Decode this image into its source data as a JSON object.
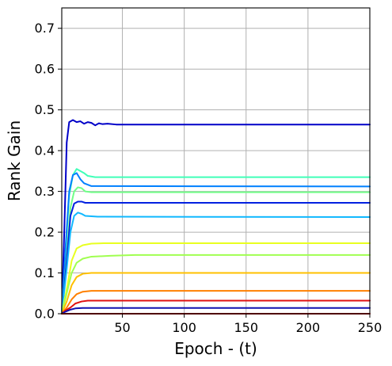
{
  "chart_data": {
    "type": "line",
    "title": "",
    "xlabel": "Epoch - (t)",
    "ylabel": "Rank Gain",
    "xlim": [
      1,
      250
    ],
    "ylim": [
      0,
      0.75
    ],
    "xticks": [
      50,
      100,
      150,
      200,
      250
    ],
    "yticks": [
      0.0,
      0.1,
      0.2,
      0.3,
      0.4,
      0.5,
      0.6,
      0.7
    ],
    "xtick_labels": [
      "50",
      "100",
      "150",
      "200",
      "250"
    ],
    "ytick_labels": [
      "0.0",
      "0.1",
      "0.2",
      "0.3",
      "0.4",
      "0.5",
      "0.6",
      "0.7"
    ],
    "grid": true,
    "legend": "none",
    "series": [
      {
        "color": "#0000c8",
        "points": [
          [
            1,
            0.0
          ],
          [
            3,
            0.2
          ],
          [
            5,
            0.42
          ],
          [
            7,
            0.47
          ],
          [
            10,
            0.475
          ],
          [
            13,
            0.47
          ],
          [
            16,
            0.472
          ],
          [
            19,
            0.466
          ],
          [
            22,
            0.47
          ],
          [
            25,
            0.468
          ],
          [
            28,
            0.462
          ],
          [
            31,
            0.467
          ],
          [
            34,
            0.465
          ],
          [
            38,
            0.466
          ],
          [
            45,
            0.464
          ],
          [
            250,
            0.464
          ]
        ]
      },
      {
        "color": "#40ffb8",
        "points": [
          [
            1,
            0.0
          ],
          [
            4,
            0.15
          ],
          [
            7,
            0.29
          ],
          [
            10,
            0.34
          ],
          [
            13,
            0.355
          ],
          [
            16,
            0.35
          ],
          [
            19,
            0.345
          ],
          [
            22,
            0.338
          ],
          [
            28,
            0.335
          ],
          [
            250,
            0.335
          ]
        ]
      },
      {
        "color": "#0080ff",
        "points": [
          [
            1,
            0.0
          ],
          [
            4,
            0.16
          ],
          [
            7,
            0.3
          ],
          [
            10,
            0.34
          ],
          [
            13,
            0.345
          ],
          [
            16,
            0.33
          ],
          [
            19,
            0.32
          ],
          [
            25,
            0.313
          ],
          [
            250,
            0.312
          ]
        ]
      },
      {
        "color": "#70ff88",
        "points": [
          [
            1,
            0.0
          ],
          [
            5,
            0.14
          ],
          [
            8,
            0.26
          ],
          [
            11,
            0.3
          ],
          [
            14,
            0.31
          ],
          [
            17,
            0.308
          ],
          [
            20,
            0.3
          ],
          [
            25,
            0.298
          ],
          [
            250,
            0.298
          ]
        ]
      },
      {
        "color": "#0020e0",
        "points": [
          [
            1,
            0.0
          ],
          [
            5,
            0.13
          ],
          [
            8,
            0.24
          ],
          [
            11,
            0.27
          ],
          [
            14,
            0.275
          ],
          [
            17,
            0.275
          ],
          [
            20,
            0.272
          ],
          [
            250,
            0.272
          ]
        ]
      },
      {
        "color": "#10b8ff",
        "points": [
          [
            1,
            0.0
          ],
          [
            5,
            0.11
          ],
          [
            8,
            0.2
          ],
          [
            11,
            0.24
          ],
          [
            14,
            0.248
          ],
          [
            17,
            0.245
          ],
          [
            20,
            0.24
          ],
          [
            30,
            0.238
          ],
          [
            250,
            0.237
          ]
        ]
      },
      {
        "color": "#e8ff20",
        "points": [
          [
            1,
            0.0
          ],
          [
            5,
            0.06
          ],
          [
            9,
            0.13
          ],
          [
            13,
            0.16
          ],
          [
            18,
            0.168
          ],
          [
            25,
            0.172
          ],
          [
            35,
            0.173
          ],
          [
            250,
            0.173
          ]
        ]
      },
      {
        "color": "#a0ff50",
        "points": [
          [
            1,
            0.0
          ],
          [
            5,
            0.05
          ],
          [
            9,
            0.1
          ],
          [
            13,
            0.125
          ],
          [
            18,
            0.135
          ],
          [
            25,
            0.14
          ],
          [
            40,
            0.142
          ],
          [
            60,
            0.144
          ],
          [
            250,
            0.144
          ]
        ]
      },
      {
        "color": "#ffc000",
        "points": [
          [
            1,
            0.0
          ],
          [
            5,
            0.03
          ],
          [
            9,
            0.07
          ],
          [
            13,
            0.09
          ],
          [
            18,
            0.098
          ],
          [
            25,
            0.1
          ],
          [
            250,
            0.1
          ]
        ]
      },
      {
        "color": "#ff8000",
        "points": [
          [
            1,
            0.0
          ],
          [
            5,
            0.015
          ],
          [
            9,
            0.035
          ],
          [
            13,
            0.048
          ],
          [
            18,
            0.054
          ],
          [
            25,
            0.056
          ],
          [
            250,
            0.056
          ]
        ]
      },
      {
        "color": "#e01010",
        "points": [
          [
            1,
            0.0
          ],
          [
            4,
            0.008
          ],
          [
            8,
            0.015
          ],
          [
            12,
            0.025
          ],
          [
            17,
            0.03
          ],
          [
            22,
            0.032
          ],
          [
            250,
            0.032
          ]
        ]
      },
      {
        "color": "#1010b0",
        "points": [
          [
            1,
            0.0
          ],
          [
            4,
            0.005
          ],
          [
            8,
            0.01
          ],
          [
            12,
            0.013
          ],
          [
            18,
            0.014
          ],
          [
            250,
            0.014
          ]
        ]
      },
      {
        "color": "#b00000",
        "points": [
          [
            1,
            0.0
          ],
          [
            250,
            0.0
          ]
        ]
      }
    ]
  }
}
